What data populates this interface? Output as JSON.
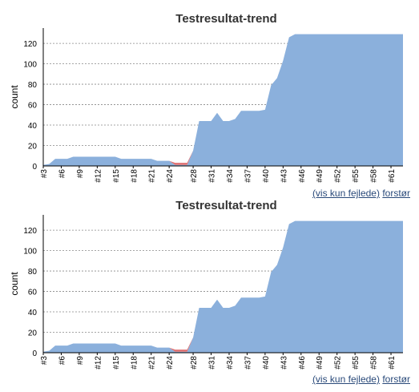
{
  "chart_data": [
    {
      "type": "area",
      "title": "Testresultat-trend",
      "ylabel": "count",
      "xlabel": "",
      "ylim": [
        0,
        135
      ],
      "yticks": [
        0,
        20,
        40,
        60,
        80,
        100,
        120
      ],
      "grid": true,
      "x": [
        "#3",
        "#4",
        "#5",
        "#6",
        "#7",
        "#8",
        "#9",
        "#10",
        "#11",
        "#12",
        "#13",
        "#14",
        "#15",
        "#16",
        "#17",
        "#18",
        "#19",
        "#20",
        "#21",
        "#22",
        "#23",
        "#24",
        "#25",
        "#26",
        "#27",
        "#28",
        "#29",
        "#30",
        "#31",
        "#32",
        "#33",
        "#34",
        "#35",
        "#36",
        "#37",
        "#38",
        "#39",
        "#40",
        "#41",
        "#42",
        "#43",
        "#44",
        "#45",
        "#46",
        "#47",
        "#48",
        "#49",
        "#50",
        "#51",
        "#52",
        "#53",
        "#54",
        "#55",
        "#56",
        "#57",
        "#58",
        "#59",
        "#60",
        "#61",
        "#62",
        "#63"
      ],
      "xtick_labels": [
        "#3",
        "#6",
        "#9",
        "#12",
        "#15",
        "#18",
        "#21",
        "#24",
        "#28",
        "#31",
        "#34",
        "#37",
        "#40",
        "#43",
        "#46",
        "#49",
        "#52",
        "#55",
        "#58",
        "#61"
      ],
      "series": [
        {
          "key": "pass",
          "color": "#8bb0dc",
          "values": [
            1,
            2,
            7,
            7,
            7,
            9,
            9,
            9,
            9,
            9,
            9,
            9,
            9,
            7,
            7,
            7,
            7,
            7,
            7,
            5,
            5,
            5,
            1,
            1,
            1,
            15,
            44,
            44,
            44,
            52,
            44,
            44,
            46,
            54,
            54,
            54,
            54,
            55,
            79,
            86,
            103,
            126,
            129,
            129,
            129,
            129,
            129,
            129,
            129,
            129,
            129,
            129,
            129,
            129,
            129,
            129,
            129,
            129,
            129,
            129,
            129
          ]
        },
        {
          "key": "fail",
          "color": "#e07070",
          "values": [
            0,
            0,
            0,
            0,
            0,
            0,
            0,
            0,
            0,
            0,
            0,
            0,
            0,
            0,
            0,
            0,
            0,
            0,
            0,
            0,
            0,
            0,
            2,
            2,
            2,
            0,
            0,
            0,
            0,
            0,
            0,
            0,
            0,
            0,
            0,
            0,
            0,
            0,
            0,
            0,
            0,
            0,
            0,
            0,
            0,
            0,
            0,
            0,
            0,
            0,
            0,
            0,
            0,
            0,
            0,
            0,
            0,
            0,
            0,
            0,
            0
          ]
        }
      ]
    },
    {
      "type": "area",
      "title": "Testresultat-trend",
      "ylabel": "count",
      "xlabel": "",
      "ylim": [
        0,
        135
      ],
      "yticks": [
        0,
        20,
        40,
        60,
        80,
        100,
        120
      ],
      "grid": true,
      "x": [
        "#3",
        "#4",
        "#5",
        "#6",
        "#7",
        "#8",
        "#9",
        "#10",
        "#11",
        "#12",
        "#13",
        "#14",
        "#15",
        "#16",
        "#17",
        "#18",
        "#19",
        "#20",
        "#21",
        "#22",
        "#23",
        "#24",
        "#25",
        "#26",
        "#27",
        "#28",
        "#29",
        "#30",
        "#31",
        "#32",
        "#33",
        "#34",
        "#35",
        "#36",
        "#37",
        "#38",
        "#39",
        "#40",
        "#41",
        "#42",
        "#43",
        "#44",
        "#45",
        "#46",
        "#47",
        "#48",
        "#49",
        "#50",
        "#51",
        "#52",
        "#53",
        "#54",
        "#55",
        "#56",
        "#57",
        "#58",
        "#59",
        "#60",
        "#61",
        "#62",
        "#63"
      ],
      "xtick_labels": [
        "#3",
        "#6",
        "#9",
        "#12",
        "#15",
        "#18",
        "#21",
        "#24",
        "#28",
        "#31",
        "#34",
        "#37",
        "#40",
        "#43",
        "#46",
        "#49",
        "#52",
        "#55",
        "#58",
        "#61"
      ],
      "series": [
        {
          "key": "pass",
          "color": "#8bb0dc",
          "values": [
            1,
            2,
            7,
            7,
            7,
            9,
            9,
            9,
            9,
            9,
            9,
            9,
            9,
            7,
            7,
            7,
            7,
            7,
            7,
            5,
            5,
            5,
            1,
            1,
            1,
            15,
            44,
            44,
            44,
            52,
            44,
            44,
            46,
            54,
            54,
            54,
            54,
            55,
            79,
            86,
            103,
            126,
            129,
            129,
            129,
            129,
            129,
            129,
            129,
            129,
            129,
            129,
            129,
            129,
            129,
            129,
            129,
            129,
            129,
            129,
            129
          ]
        },
        {
          "key": "fail",
          "color": "#e07070",
          "values": [
            0,
            0,
            0,
            0,
            0,
            0,
            0,
            0,
            0,
            0,
            0,
            0,
            0,
            0,
            0,
            0,
            0,
            0,
            0,
            0,
            0,
            0,
            2,
            2,
            2,
            0,
            0,
            0,
            0,
            0,
            0,
            0,
            0,
            0,
            0,
            0,
            0,
            0,
            0,
            0,
            0,
            0,
            0,
            0,
            0,
            0,
            0,
            0,
            0,
            0,
            0,
            0,
            0,
            0,
            0,
            0,
            0,
            0,
            0,
            0,
            0
          ]
        }
      ]
    }
  ],
  "links": [
    {
      "show_failed": "(vis kun fejlede)",
      "enlarge": "forstør"
    },
    {
      "show_failed": "(vis kun fejlede)",
      "enlarge": "forstør"
    }
  ]
}
